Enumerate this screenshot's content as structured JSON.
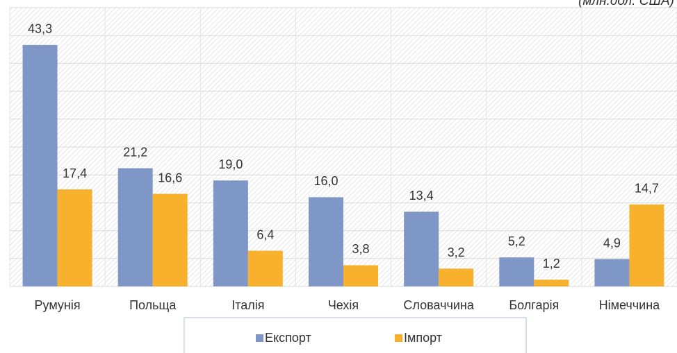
{
  "chart_data": {
    "type": "bar",
    "title": "(млн.дол. США)",
    "categories": [
      "Румунія",
      "Польща",
      "Італія",
      "Чехія",
      "Словаччина",
      "Болгарія",
      "Німеччина"
    ],
    "series": [
      {
        "name": "Експорт",
        "color": "#7f97c6",
        "values": [
          43.3,
          21.2,
          19.0,
          16.0,
          13.4,
          5.2,
          4.9
        ],
        "value_labels": [
          "43,3",
          "21,2",
          "19,0",
          "16,0",
          "13,4",
          "5,2",
          "4,9"
        ]
      },
      {
        "name": "Імпорт",
        "color": "#f7b12d",
        "values": [
          17.4,
          16.6,
          6.4,
          3.8,
          3.2,
          1.2,
          14.7
        ],
        "value_labels": [
          "17,4",
          "16,6",
          "6,4",
          "3,8",
          "3,2",
          "1,2",
          "14,7"
        ]
      }
    ],
    "ylim": [
      0,
      50
    ],
    "yticks": [
      0,
      5,
      10,
      15,
      20,
      25,
      30,
      35,
      40,
      45,
      50
    ],
    "grid": true
  }
}
